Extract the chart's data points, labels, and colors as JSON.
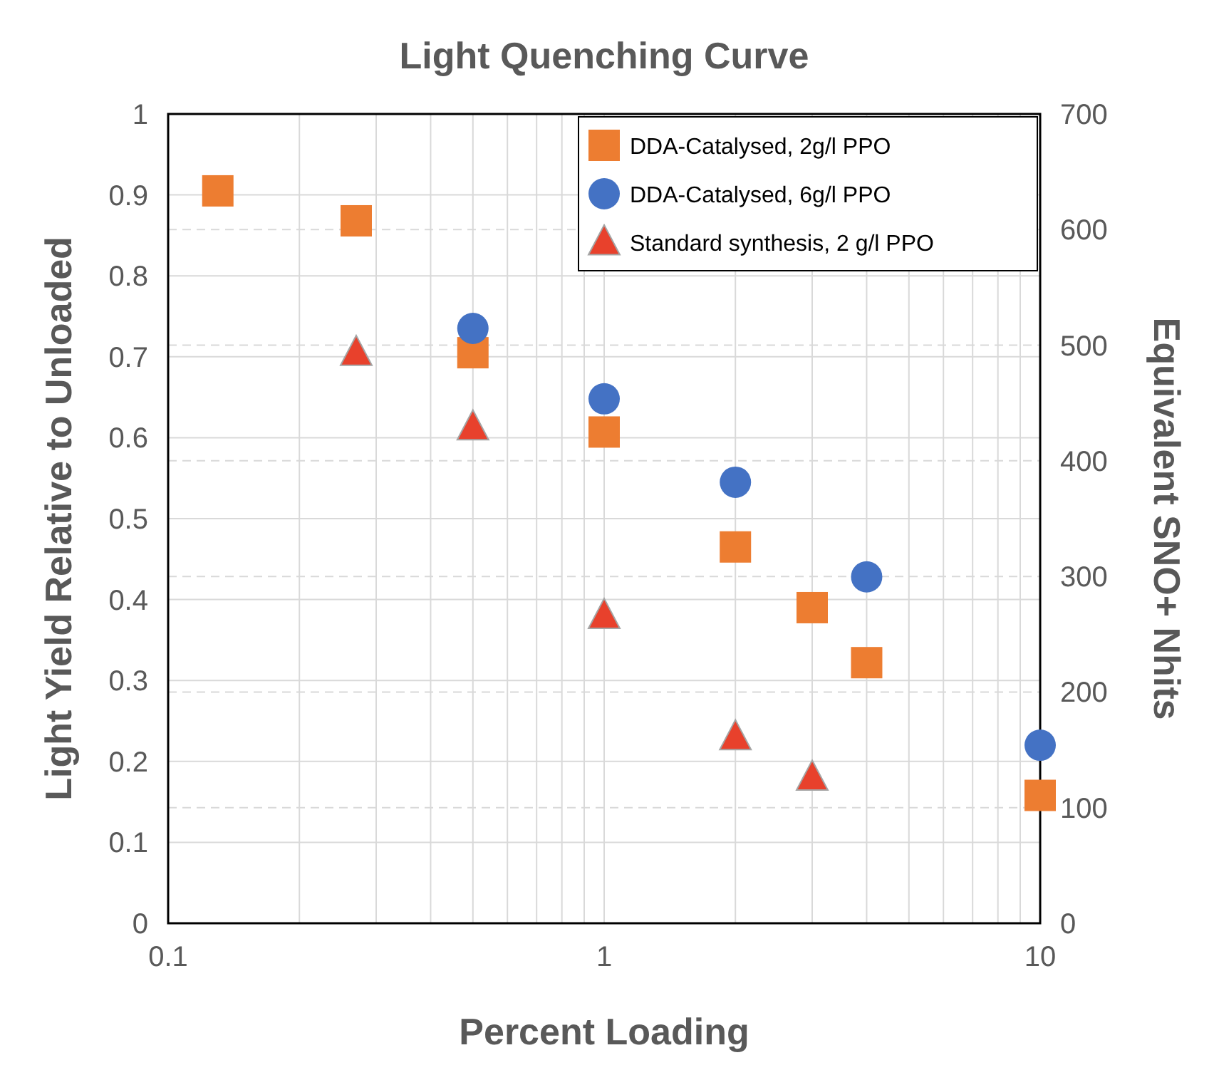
{
  "chart_data": {
    "type": "scatter",
    "title": "Light Quenching Curve",
    "xlabel": "Percent Loading",
    "ylabel": "Light Yield Relative to Unloaded",
    "y2label": "Equivalent SNO+ Nhits",
    "log": "x",
    "grid": true,
    "legend": "top right",
    "xlim": [
      0.1,
      10
    ],
    "xticks": [
      0.1,
      {
        "value": 0.2,
        "label": null
      },
      {
        "value": 0.3,
        "label": null
      },
      {
        "value": 0.4,
        "label": null
      },
      {
        "value": 0.5,
        "label": null
      },
      {
        "value": 0.6,
        "label": null
      },
      {
        "value": 0.7,
        "label": null
      },
      {
        "value": 0.8,
        "label": null
      },
      {
        "value": 0.9,
        "label": null
      },
      1,
      {
        "value": 2,
        "label": null
      },
      {
        "value": 3,
        "label": null
      },
      {
        "value": 4,
        "label": null
      },
      {
        "value": 5,
        "label": null
      },
      {
        "value": 6,
        "label": null
      },
      {
        "value": 7,
        "label": null
      },
      {
        "value": 8,
        "label": null
      },
      {
        "value": 9,
        "label": null
      },
      10
    ],
    "ylim": [
      0,
      1
    ],
    "yticks": [
      0,
      0.1,
      0.2,
      0.3,
      0.4,
      0.5,
      0.6,
      0.7,
      0.8,
      0.9,
      1
    ],
    "y2lim": [
      0,
      700
    ],
    "y2ticks": [
      0,
      100,
      200,
      300,
      400,
      500,
      600,
      700
    ],
    "series": [
      {
        "name": "DDA-Catalysed, 2g/l PPO",
        "color": "#ed7d31",
        "marker": "square",
        "x": [
          0.13,
          0.27,
          0.5,
          1,
          2,
          3,
          4,
          10
        ],
        "values": [
          0.905,
          0.868,
          0.705,
          0.607,
          0.465,
          0.39,
          0.322,
          0.158
        ]
      },
      {
        "name": "DDA-Catalysed, 6g/l PPO",
        "color": "#4472c4",
        "marker": "circle",
        "x": [
          0.5,
          1,
          2,
          4,
          10
        ],
        "values": [
          0.735,
          0.648,
          0.545,
          0.428,
          0.22
        ]
      },
      {
        "name": "Standard synthesis, 2 g/l PPO",
        "color": "#e8412c",
        "marker": "triangle",
        "x": [
          0.27,
          0.5,
          1,
          2,
          3
        ],
        "values": [
          0.705,
          0.613,
          0.38,
          0.23,
          0.18
        ]
      }
    ]
  }
}
